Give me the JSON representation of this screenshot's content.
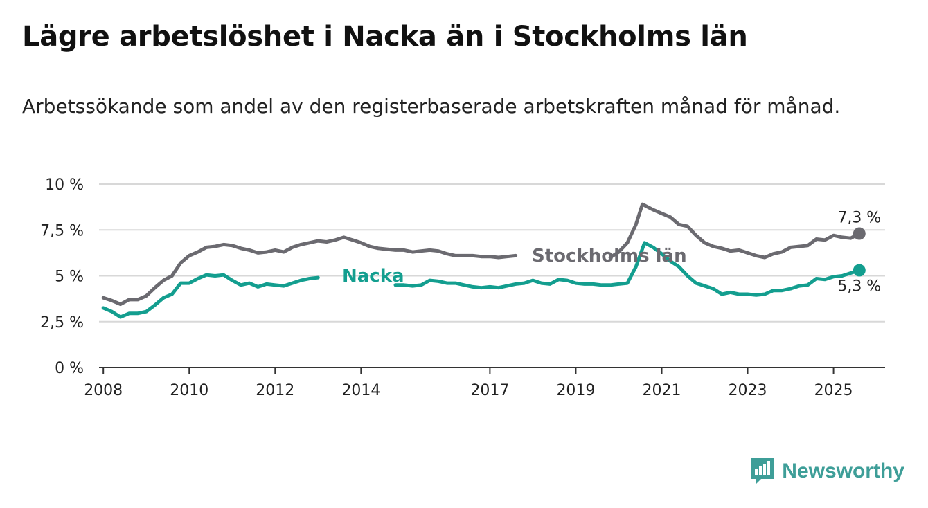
{
  "title": "Lägre arbetslöshet i Nacka än i Stockholms län",
  "subtitle": "Arbetssökande som andel av den registerbaserade arbetskraften månad för månad.",
  "brand": "Newsworthy",
  "colors": {
    "stockholm": "#6b6a70",
    "nacka": "#139e8f",
    "grid": "#d8d8d8",
    "axis": "#333333",
    "brand": "#3e9e98"
  },
  "chart_data": {
    "type": "line",
    "xlim": [
      2007.9,
      2026.2
    ],
    "ylim": [
      0,
      10
    ],
    "y_ticks": [
      {
        "value": 0,
        "label": "0 %"
      },
      {
        "value": 2.5,
        "label": "2,5 %"
      },
      {
        "value": 5,
        "label": "5 %"
      },
      {
        "value": 7.5,
        "label": "7,5 %"
      },
      {
        "value": 10,
        "label": "10 %"
      }
    ],
    "x_ticks": [
      {
        "value": 2008,
        "label": "2008"
      },
      {
        "value": 2010,
        "label": "2010"
      },
      {
        "value": 2012,
        "label": "2012"
      },
      {
        "value": 2014,
        "label": "2014"
      },
      {
        "value": 2017,
        "label": "2017"
      },
      {
        "value": 2019,
        "label": "2019"
      },
      {
        "value": 2021,
        "label": "2021"
      },
      {
        "value": 2023,
        "label": "2023"
      },
      {
        "value": 2025,
        "label": "2025"
      }
    ],
    "grid": true,
    "legend": "inline labels",
    "series": [
      {
        "name": "Stockholms län",
        "end_label": "7,3 %",
        "points": [
          [
            2008.0,
            3.8
          ],
          [
            2008.2,
            3.65
          ],
          [
            2008.4,
            3.45
          ],
          [
            2008.6,
            3.7
          ],
          [
            2008.8,
            3.7
          ],
          [
            2009.0,
            3.9
          ],
          [
            2009.2,
            4.35
          ],
          [
            2009.4,
            4.75
          ],
          [
            2009.6,
            5.0
          ],
          [
            2009.8,
            5.7
          ],
          [
            2010.0,
            6.1
          ],
          [
            2010.2,
            6.3
          ],
          [
            2010.4,
            6.55
          ],
          [
            2010.6,
            6.6
          ],
          [
            2010.8,
            6.7
          ],
          [
            2011.0,
            6.65
          ],
          [
            2011.2,
            6.5
          ],
          [
            2011.4,
            6.4
          ],
          [
            2011.6,
            6.25
          ],
          [
            2011.8,
            6.3
          ],
          [
            2012.0,
            6.4
          ],
          [
            2012.2,
            6.3
          ],
          [
            2012.4,
            6.55
          ],
          [
            2012.6,
            6.7
          ],
          [
            2012.8,
            6.8
          ],
          [
            2013.0,
            6.9
          ],
          [
            2013.2,
            6.85
          ],
          [
            2013.4,
            6.95
          ],
          [
            2013.6,
            7.1
          ],
          [
            2013.8,
            6.95
          ],
          [
            2014.0,
            6.8
          ],
          [
            2014.2,
            6.6
          ],
          [
            2014.4,
            6.5
          ],
          [
            2014.6,
            6.45
          ],
          [
            2014.8,
            6.4
          ],
          [
            2015.0,
            6.4
          ],
          [
            2015.2,
            6.3
          ],
          [
            2015.4,
            6.35
          ],
          [
            2015.6,
            6.4
          ],
          [
            2015.8,
            6.35
          ],
          [
            2016.0,
            6.2
          ],
          [
            2016.2,
            6.1
          ],
          [
            2016.4,
            6.1
          ],
          [
            2016.6,
            6.1
          ],
          [
            2016.8,
            6.05
          ],
          [
            2017.0,
            6.05
          ],
          [
            2017.2,
            6.0
          ],
          [
            2017.4,
            6.05
          ],
          [
            2017.6,
            6.1
          ]
        ]
      },
      {
        "name": "Nacka",
        "end_label": "5,3 %",
        "points": [
          [
            2008.0,
            3.25
          ],
          [
            2008.2,
            3.05
          ],
          [
            2008.4,
            2.75
          ],
          [
            2008.6,
            2.95
          ],
          [
            2008.8,
            2.95
          ],
          [
            2009.0,
            3.05
          ],
          [
            2009.2,
            3.4
          ],
          [
            2009.4,
            3.8
          ],
          [
            2009.6,
            4.0
          ],
          [
            2009.8,
            4.6
          ],
          [
            2010.0,
            4.6
          ],
          [
            2010.2,
            4.85
          ],
          [
            2010.4,
            5.05
          ],
          [
            2010.6,
            5.0
          ],
          [
            2010.8,
            5.05
          ],
          [
            2011.0,
            4.75
          ],
          [
            2011.2,
            4.5
          ],
          [
            2011.4,
            4.6
          ],
          [
            2011.6,
            4.4
          ],
          [
            2011.8,
            4.55
          ],
          [
            2012.0,
            4.5
          ],
          [
            2012.2,
            4.45
          ],
          [
            2012.4,
            4.6
          ],
          [
            2012.6,
            4.75
          ],
          [
            2012.8,
            4.85
          ],
          [
            2013.0,
            4.9
          ]
        ]
      }
    ],
    "extra_segments": [
      {
        "series": "Nacka",
        "points": [
          [
            2014.8,
            4.5
          ],
          [
            2015.0,
            4.5
          ],
          [
            2015.2,
            4.45
          ],
          [
            2015.4,
            4.5
          ],
          [
            2015.6,
            4.75
          ],
          [
            2015.8,
            4.7
          ],
          [
            2016.0,
            4.6
          ],
          [
            2016.2,
            4.6
          ],
          [
            2016.4,
            4.5
          ],
          [
            2016.6,
            4.4
          ],
          [
            2016.8,
            4.35
          ],
          [
            2017.0,
            4.4
          ],
          [
            2017.2,
            4.35
          ],
          [
            2017.4,
            4.45
          ],
          [
            2017.6,
            4.55
          ],
          [
            2017.8,
            4.6
          ],
          [
            2018.0,
            4.75
          ],
          [
            2018.2,
            4.6
          ],
          [
            2018.4,
            4.55
          ],
          [
            2018.6,
            4.8
          ],
          [
            2018.8,
            4.75
          ],
          [
            2019.0,
            4.6
          ],
          [
            2019.2,
            4.55
          ],
          [
            2019.4,
            4.55
          ],
          [
            2019.6,
            4.5
          ],
          [
            2019.8,
            4.5
          ],
          [
            2020.0,
            4.55
          ],
          [
            2020.2,
            4.6
          ],
          [
            2020.4,
            5.5
          ],
          [
            2020.6,
            6.8
          ],
          [
            2020.8,
            6.55
          ],
          [
            2021.0,
            6.2
          ],
          [
            2021.2,
            5.8
          ],
          [
            2021.4,
            5.5
          ],
          [
            2021.6,
            5.0
          ],
          [
            2021.8,
            4.6
          ],
          [
            2022.0,
            4.45
          ],
          [
            2022.2,
            4.3
          ],
          [
            2022.4,
            4.0
          ],
          [
            2022.6,
            4.1
          ],
          [
            2022.8,
            4.0
          ],
          [
            2023.0,
            4.0
          ],
          [
            2023.2,
            3.95
          ],
          [
            2023.4,
            4.0
          ],
          [
            2023.6,
            4.2
          ],
          [
            2023.8,
            4.2
          ],
          [
            2024.0,
            4.3
          ],
          [
            2024.2,
            4.45
          ],
          [
            2024.4,
            4.5
          ],
          [
            2024.6,
            4.85
          ],
          [
            2024.8,
            4.8
          ],
          [
            2025.0,
            4.95
          ],
          [
            2025.2,
            5.0
          ],
          [
            2025.4,
            5.15
          ],
          [
            2025.6,
            5.3
          ]
        ]
      },
      {
        "series": "Stockholms län",
        "points": [
          [
            2019.8,
            6.0
          ],
          [
            2020.0,
            6.3
          ],
          [
            2020.2,
            6.8
          ],
          [
            2020.4,
            7.8
          ],
          [
            2020.55,
            8.9
          ],
          [
            2020.8,
            8.6
          ],
          [
            2021.0,
            8.4
          ],
          [
            2021.2,
            8.2
          ],
          [
            2021.4,
            7.8
          ],
          [
            2021.6,
            7.7
          ],
          [
            2021.8,
            7.2
          ],
          [
            2022.0,
            6.8
          ],
          [
            2022.2,
            6.6
          ],
          [
            2022.4,
            6.5
          ],
          [
            2022.6,
            6.35
          ],
          [
            2022.8,
            6.4
          ],
          [
            2023.0,
            6.25
          ],
          [
            2023.2,
            6.1
          ],
          [
            2023.4,
            6.0
          ],
          [
            2023.6,
            6.2
          ],
          [
            2023.8,
            6.3
          ],
          [
            2024.0,
            6.55
          ],
          [
            2024.2,
            6.6
          ],
          [
            2024.4,
            6.65
          ],
          [
            2024.6,
            7.0
          ],
          [
            2024.8,
            6.95
          ],
          [
            2025.0,
            7.2
          ],
          [
            2025.2,
            7.1
          ],
          [
            2025.4,
            7.05
          ],
          [
            2025.6,
            7.3
          ]
        ]
      }
    ]
  }
}
